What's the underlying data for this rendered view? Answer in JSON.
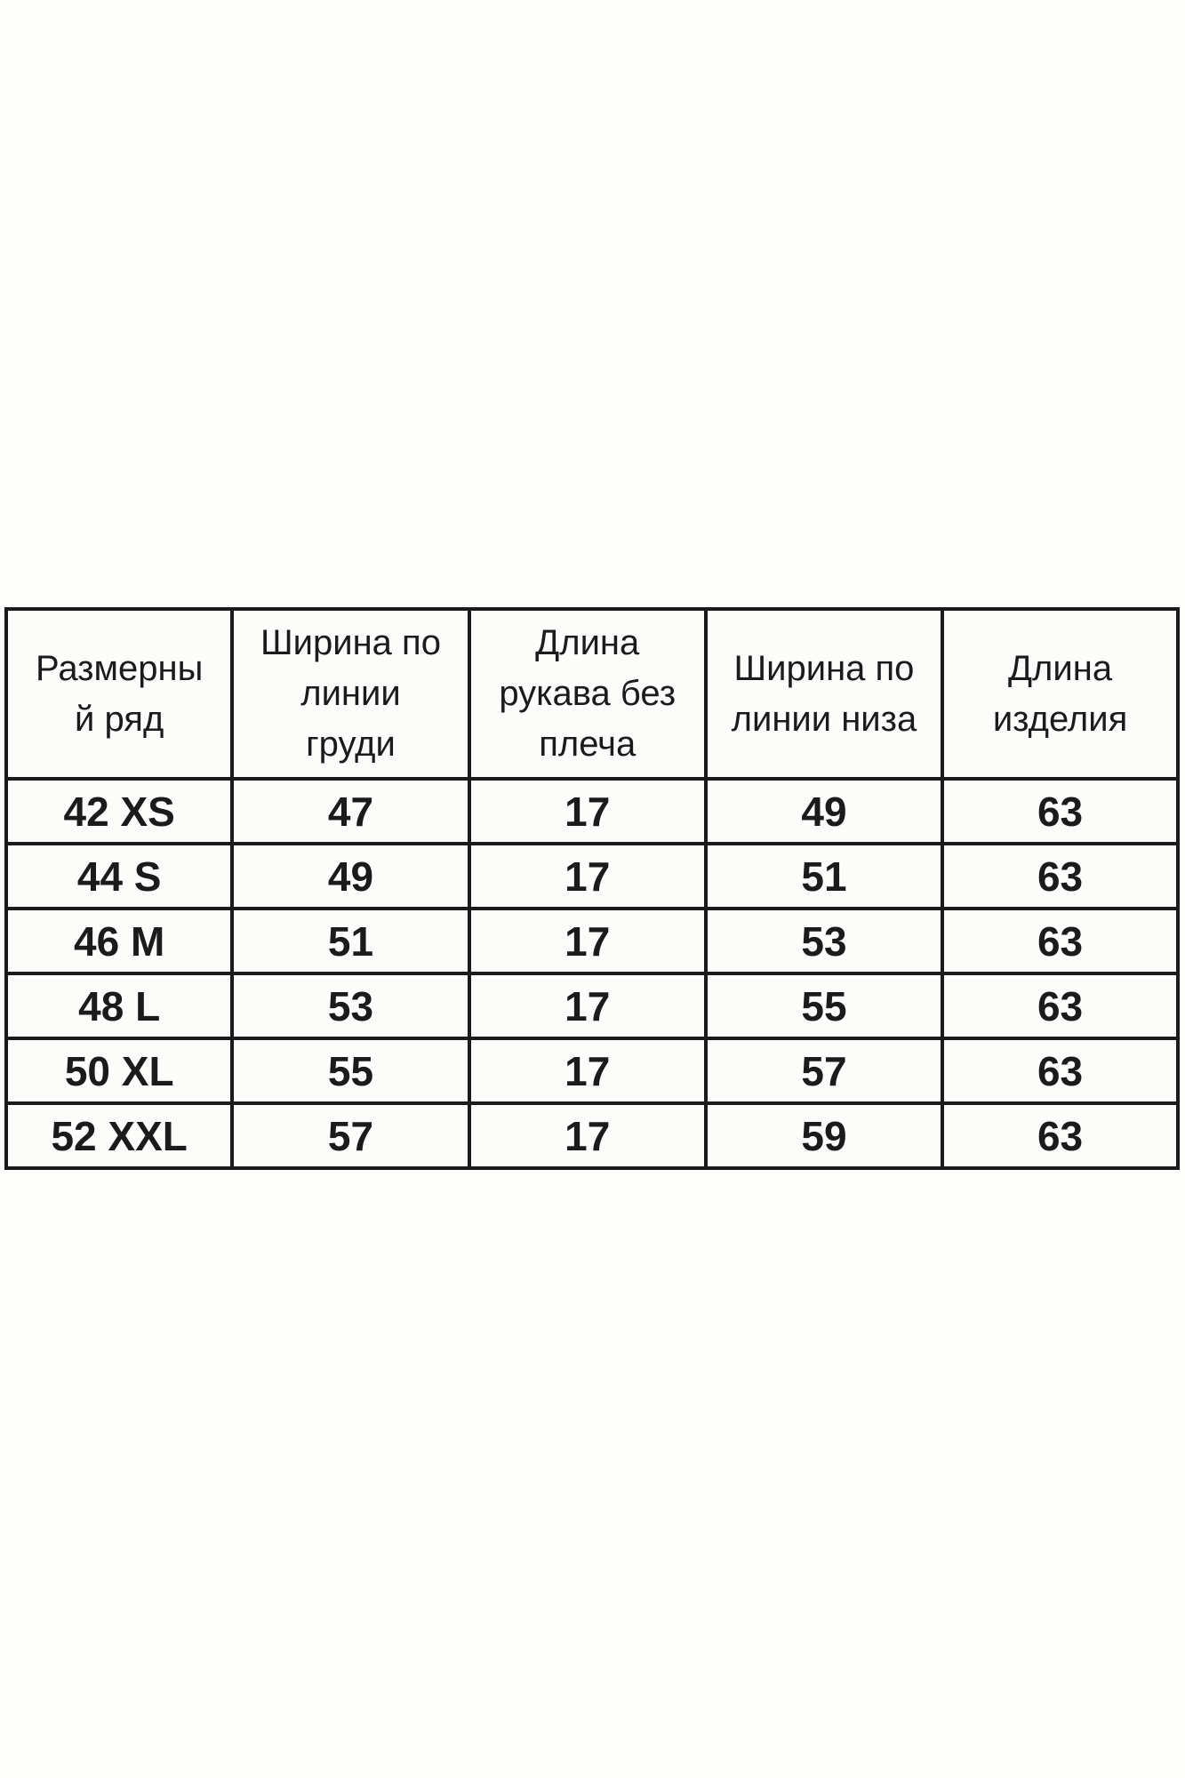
{
  "page": {
    "background": "#fdfdfb"
  },
  "colors": {
    "border": "#1b1b1b",
    "text": "#1b1b1b",
    "cell_background": "#fcfcfa"
  },
  "table": {
    "columns": [
      {
        "label": "Размерны\nй ряд"
      },
      {
        "label": "Ширина по\nлинии\nгруди"
      },
      {
        "label": "Длина\nрукава без\nплеча"
      },
      {
        "label": "Ширина по\nлинии низа"
      },
      {
        "label": "Длина\nизделия"
      }
    ],
    "rows": [
      {
        "size": "42 XS",
        "chest_width": "47",
        "sleeve_length": "17",
        "hem_width": "49",
        "item_length": "63"
      },
      {
        "size": "44 S",
        "chest_width": "49",
        "sleeve_length": "17",
        "hem_width": "51",
        "item_length": "63"
      },
      {
        "size": "46 M",
        "chest_width": "51",
        "sleeve_length": "17",
        "hem_width": "53",
        "item_length": "63"
      },
      {
        "size": "48 L",
        "chest_width": "53",
        "sleeve_length": "17",
        "hem_width": "55",
        "item_length": "63"
      },
      {
        "size": "50 XL",
        "chest_width": "55",
        "sleeve_length": "17",
        "hem_width": "57",
        "item_length": "63"
      },
      {
        "size": "52 XXL",
        "chest_width": "57",
        "sleeve_length": "17",
        "hem_width": "59",
        "item_length": "63"
      }
    ]
  },
  "chart_data": {
    "type": "table",
    "title": "",
    "columns": [
      "Размерный ряд",
      "Ширина по линии груди",
      "Длина рукава без плеча",
      "Ширина по линии низа",
      "Длина изделия"
    ],
    "rows": [
      [
        "42 XS",
        47,
        17,
        49,
        63
      ],
      [
        "44 S",
        49,
        17,
        51,
        63
      ],
      [
        "46 M",
        51,
        17,
        53,
        63
      ],
      [
        "48 L",
        53,
        17,
        55,
        63
      ],
      [
        "50 XL",
        55,
        17,
        57,
        63
      ],
      [
        "52 XXL",
        57,
        17,
        59,
        63
      ]
    ]
  }
}
